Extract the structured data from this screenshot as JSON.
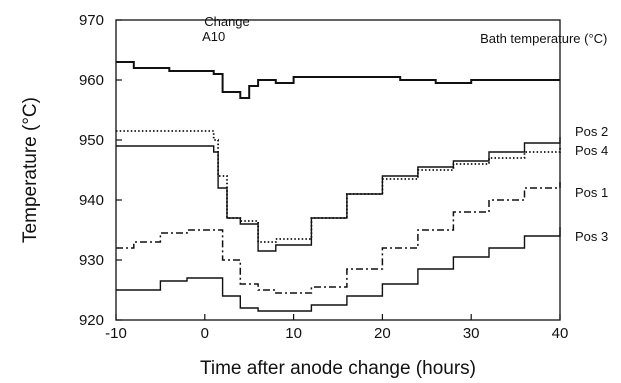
{
  "chart_data": {
    "type": "line",
    "title": "",
    "xlabel": "Time after anode change (hours)",
    "ylabel": "Temperature (°C)",
    "xlim": [
      -10,
      40
    ],
    "ylim": [
      920,
      970
    ],
    "xticks": [
      -10,
      0,
      10,
      20,
      30,
      40
    ],
    "yticks": [
      920,
      930,
      940,
      950,
      960,
      970
    ],
    "grid": false,
    "legend": "none",
    "annotations": [
      {
        "text": "Change",
        "x": 2.5,
        "y": 969
      },
      {
        "text": "A10",
        "x": 1,
        "y": 966.5
      },
      {
        "text": "Bath temperature (°C)",
        "x": 31,
        "y": 966.2
      }
    ],
    "series": [
      {
        "name": "Bath temperature (°C)",
        "style": "solid-thick",
        "x": [
          -10,
          -8,
          -6,
          -4,
          -2,
          0,
          1,
          2,
          4,
          5,
          6,
          8,
          10,
          14,
          18,
          22,
          26,
          30,
          34,
          38,
          40
        ],
        "y": [
          963,
          962,
          962,
          961.5,
          961.5,
          961.5,
          961,
          958,
          957,
          959,
          960,
          959.5,
          960.5,
          960.5,
          960.5,
          960,
          959.5,
          960,
          960,
          960,
          960
        ]
      },
      {
        "name": "Pos 2",
        "style": "dotted",
        "x": [
          -10,
          -5,
          0,
          1,
          1.5,
          2.5,
          4,
          6,
          8,
          12,
          16,
          20,
          24,
          28,
          32,
          36,
          40
        ],
        "y": [
          951.5,
          951.5,
          951.5,
          950,
          944,
          937,
          936.5,
          933,
          933.5,
          937,
          941,
          943.5,
          945,
          946,
          947,
          948,
          949
        ]
      },
      {
        "name": "Pos 4",
        "style": "solid",
        "x": [
          -10,
          -5,
          0,
          1,
          1.5,
          2.5,
          4,
          6,
          8,
          12,
          16,
          20,
          24,
          28,
          32,
          36,
          40
        ],
        "y": [
          949,
          949,
          949,
          948,
          942,
          937,
          936,
          931.5,
          932.5,
          937,
          941,
          944,
          945.5,
          946.5,
          948,
          949.5,
          950.5
        ]
      },
      {
        "name": "Pos 1",
        "style": "dash-dot",
        "x": [
          -10,
          -8,
          -5,
          -2,
          0,
          2,
          4,
          6,
          8,
          12,
          16,
          20,
          24,
          28,
          32,
          36,
          40
        ],
        "y": [
          932,
          933,
          934.5,
          935,
          935,
          930,
          926,
          925,
          924.5,
          925.5,
          928.5,
          932,
          935,
          938,
          940,
          942,
          943
        ]
      },
      {
        "name": "Pos 3",
        "style": "solid",
        "x": [
          -10,
          -8,
          -5,
          -2,
          0,
          2,
          4,
          6,
          8,
          12,
          16,
          20,
          24,
          28,
          32,
          36,
          40
        ],
        "y": [
          925,
          925,
          926.5,
          927,
          927,
          924,
          922,
          921.5,
          921.5,
          922.5,
          924,
          926,
          928.5,
          930.5,
          932,
          934,
          935.5
        ]
      }
    ]
  }
}
